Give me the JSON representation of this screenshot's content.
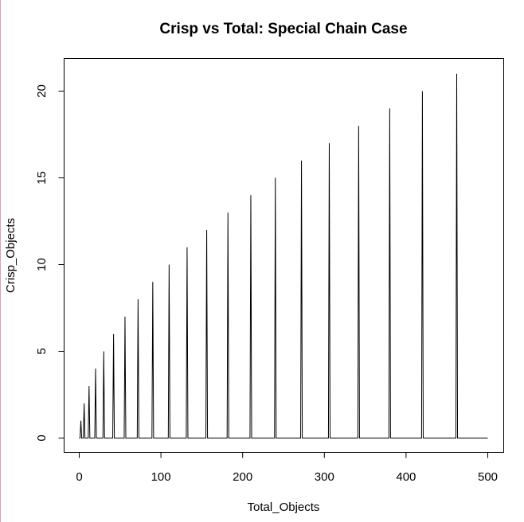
{
  "chart_data": {
    "type": "line",
    "title": "Crisp vs Total: Special Chain Case",
    "xlabel": "Total_Objects",
    "ylabel": "Crisp_Objects",
    "xlim": [
      0,
      500
    ],
    "ylim": [
      0,
      21
    ],
    "x_ticks": [
      0,
      100,
      200,
      300,
      400,
      500
    ],
    "y_ticks": [
      0,
      5,
      10,
      15,
      20
    ],
    "grid": false,
    "legend": "none",
    "line_color": "#000000",
    "spikes": [
      {
        "x": 2,
        "y": 1
      },
      {
        "x": 6,
        "y": 2
      },
      {
        "x": 12,
        "y": 3
      },
      {
        "x": 20,
        "y": 4
      },
      {
        "x": 30,
        "y": 5
      },
      {
        "x": 42,
        "y": 6
      },
      {
        "x": 56,
        "y": 7
      },
      {
        "x": 72,
        "y": 8
      },
      {
        "x": 90,
        "y": 9
      },
      {
        "x": 110,
        "y": 10
      },
      {
        "x": 132,
        "y": 11
      },
      {
        "x": 156,
        "y": 12
      },
      {
        "x": 182,
        "y": 13
      },
      {
        "x": 210,
        "y": 14
      },
      {
        "x": 240,
        "y": 15
      },
      {
        "x": 272,
        "y": 16
      },
      {
        "x": 306,
        "y": 17
      },
      {
        "x": 342,
        "y": 18
      },
      {
        "x": 380,
        "y": 19
      },
      {
        "x": 420,
        "y": 20
      },
      {
        "x": 462,
        "y": 21
      }
    ],
    "x_end": 500
  }
}
